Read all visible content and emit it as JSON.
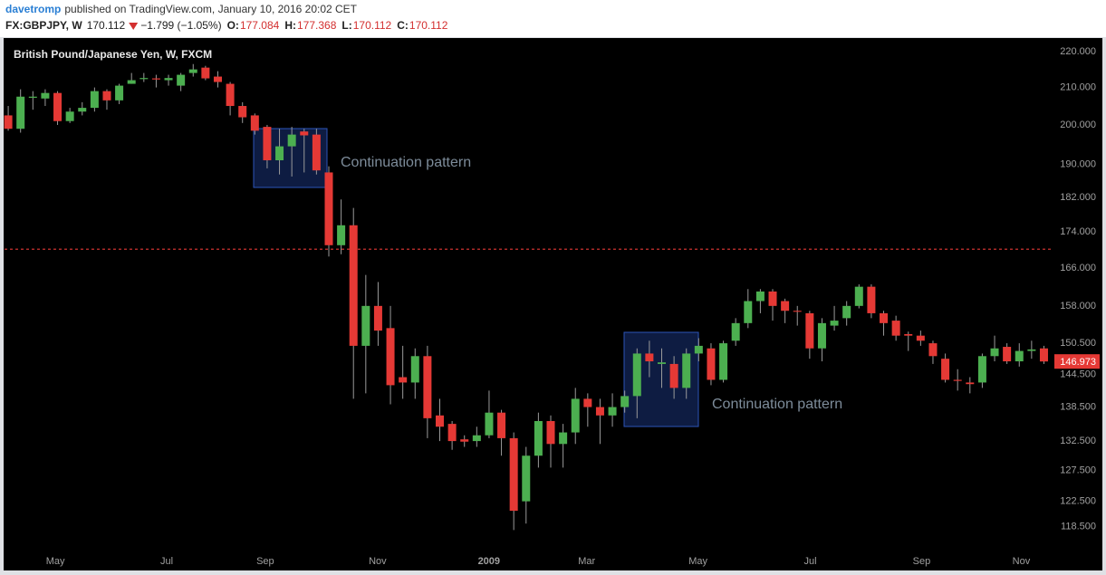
{
  "header": {
    "author": "davetromp",
    "published": "published on TradingView.com, January 10, 2016 20:02 CET",
    "symbol": "FX:GBPJPY, W",
    "last": 170.112,
    "change": "−1.799 (−1.05%)",
    "ohlc": [
      {
        "label": "O:",
        "value": 177.084
      },
      {
        "label": "H:",
        "value": 177.368
      },
      {
        "label": "L:",
        "value": 170.112
      },
      {
        "label": "C:",
        "value": 170.112
      }
    ]
  },
  "chart_data": {
    "type": "candlestick",
    "title": "British Pound/Japanese Yen, W, FXCM",
    "up_color": "#4caf50",
    "down_color": "#e53935",
    "log": true,
    "grid": false,
    "open": [
      202.5,
      199,
      207.2,
      207,
      208.5,
      201,
      203.5,
      204.5,
      209,
      206.5,
      211,
      212.3,
      212.5,
      212,
      210.5,
      214,
      215.5,
      213,
      211,
      205,
      202.5,
      199.5,
      191,
      194.5,
      198.3,
      197.5,
      188,
      171,
      175.5,
      150,
      158,
      153.5,
      144,
      143,
      148,
      137,
      135.5,
      132.8,
      132.5,
      133.5,
      137.5,
      133,
      122.5,
      130,
      136,
      132,
      134,
      140,
      138.5,
      137,
      138.5,
      140.5,
      148.5,
      146.5,
      146.5,
      142,
      148.5,
      149.5,
      143.5,
      151,
      154.5,
      159,
      161,
      159,
      157,
      156.5,
      149.5,
      154,
      155.5,
      158,
      162,
      156.5,
      155,
      152.3,
      152,
      150.5,
      147.5,
      143.5,
      143,
      143,
      148,
      149.8,
      147,
      149,
      149.5
    ],
    "high": [
      205,
      209.5,
      209,
      209.5,
      209,
      204.5,
      206,
      210,
      209.5,
      211,
      214,
      214,
      213.5,
      213.5,
      214,
      216.5,
      216,
      214.5,
      211.5,
      206,
      203,
      200,
      199,
      199.5,
      199,
      199,
      189.5,
      181.5,
      179.5,
      164.5,
      163,
      158,
      150,
      149.5,
      150,
      140,
      136,
      133.5,
      135,
      141.5,
      138,
      134,
      131.5,
      137.5,
      137,
      135.5,
      142,
      141,
      140,
      141,
      141.5,
      149.5,
      151,
      149.5,
      148,
      149.5,
      151.5,
      150.5,
      151,
      155.5,
      161.5,
      161.5,
      161.5,
      159.5,
      158,
      157,
      155.5,
      158,
      159,
      162.5,
      162.5,
      157,
      156,
      152.8,
      153,
      151,
      148.5,
      145.5,
      144,
      148.5,
      152,
      150.5,
      150.5,
      151,
      150
    ],
    "low": [
      198.5,
      198,
      204,
      205,
      200,
      200.5,
      202.5,
      203.5,
      204,
      205.5,
      211,
      211.5,
      210,
      210.5,
      209,
      213,
      212,
      210,
      202.5,
      200.5,
      197.5,
      189,
      187.5,
      187,
      188,
      187.5,
      168.5,
      169,
      140,
      141,
      150,
      139,
      140,
      140,
      133,
      132.5,
      131,
      131.5,
      131.5,
      133,
      130,
      118,
      119,
      128,
      128,
      128,
      132,
      135,
      132,
      135,
      137.5,
      136.5,
      144,
      142,
      140,
      140,
      147,
      142.5,
      143,
      150,
      153.5,
      156.5,
      155,
      154.5,
      154,
      147.5,
      147,
      153,
      154,
      157.5,
      155.5,
      152,
      151,
      149,
      150,
      146.5,
      143,
      141.5,
      141,
      142,
      147,
      146.5,
      146,
      147.5,
      146.5
    ],
    "close": [
      199,
      207.5,
      207.5,
      208.5,
      201,
      203.5,
      204.5,
      209,
      206.5,
      210.5,
      212,
      212.6,
      212.2,
      212.6,
      213.5,
      215,
      212.5,
      211.5,
      205,
      202,
      198.5,
      191,
      194.5,
      197.5,
      197.3,
      188.5,
      171,
      175.5,
      150,
      158,
      153,
      142.5,
      143,
      148,
      136.5,
      135,
      132.5,
      132.4,
      133.5,
      137.5,
      133,
      121,
      130,
      136,
      132,
      134,
      140,
      138.5,
      137,
      138.5,
      140.5,
      148.5,
      147,
      146.8,
      142,
      148.5,
      150,
      143.5,
      150.5,
      154.5,
      159,
      161,
      158,
      157,
      156.8,
      149.5,
      154.5,
      155,
      158,
      162,
      156.5,
      154.5,
      152,
      152,
      151,
      148,
      143.5,
      143.3,
      142.7,
      148,
      149.5,
      147,
      149,
      149.3,
      146.973
    ],
    "xlim": [
      -0.3,
      84.7
    ],
    "xticks": [
      {
        "value": 3.82,
        "label": "May"
      },
      {
        "value": 12.85,
        "label": "Jul"
      },
      {
        "value": 20.85,
        "label": "Sep"
      },
      {
        "value": 29.96,
        "label": "Nov"
      },
      {
        "value": 38.99,
        "label": "2009"
      },
      {
        "value": 46.92,
        "label": "Mar"
      },
      {
        "value": 55.95,
        "label": "May"
      },
      {
        "value": 65.05,
        "label": "Jul"
      },
      {
        "value": 74.08,
        "label": "Sep"
      },
      {
        "value": 82.16,
        "label": "Nov"
      }
    ],
    "ylim": [
      115.3,
      223.7
    ],
    "yticks": [
      {
        "value": 220,
        "label": "220.000"
      },
      {
        "value": 210,
        "label": "210.000"
      },
      {
        "value": 200,
        "label": "200.000"
      },
      {
        "value": 190,
        "label": "190.000"
      },
      {
        "value": 182,
        "label": "182.000"
      },
      {
        "value": 174,
        "label": "174.000"
      },
      {
        "value": 166,
        "label": "166.000"
      },
      {
        "value": 158,
        "label": "158.000"
      },
      {
        "value": 150.5,
        "label": "150.500"
      },
      {
        "value": 144.5,
        "label": "144.500"
      },
      {
        "value": 138.5,
        "label": "138.500"
      },
      {
        "value": 132.5,
        "label": "132.500"
      },
      {
        "value": 127.5,
        "label": "127.500"
      },
      {
        "value": 122.5,
        "label": "122.500"
      },
      {
        "value": 118.5,
        "label": "118.500"
      }
    ],
    "annotations": [
      "Continuation pattern",
      "Continuation pattern"
    ]
  }
}
